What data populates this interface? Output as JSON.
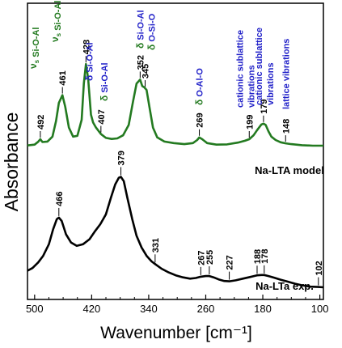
{
  "chart_data": {
    "type": "line",
    "xlabel": "Wavenumber [cm⁻¹]",
    "ylabel": "Absorbance",
    "xlim": [
      510,
      95
    ],
    "x_reversed": true,
    "x_ticks": [
      500,
      420,
      340,
      260,
      180,
      100
    ],
    "y_ticks_shown": false,
    "colors": {
      "model": "#237a20",
      "exp": "#000000",
      "vib_text": "#1f1fc8",
      "peak_text": "#000000"
    },
    "series": [
      {
        "name": "Na-LTA model",
        "color": "#237a20",
        "points": [
          [
            510,
            0.1
          ],
          [
            500,
            0.4
          ],
          [
            495,
            1.5
          ],
          [
            492,
            2.5
          ],
          [
            489,
            1.4
          ],
          [
            482,
            1.6
          ],
          [
            475,
            3.5
          ],
          [
            470,
            9.5
          ],
          [
            466,
            16.5
          ],
          [
            461,
            19.5
          ],
          [
            457,
            15
          ],
          [
            452,
            7
          ],
          [
            446,
            3.5
          ],
          [
            440,
            3.8
          ],
          [
            434,
            10
          ],
          [
            431,
            24
          ],
          [
            428,
            31.5
          ],
          [
            425,
            26
          ],
          [
            421,
            12
          ],
          [
            418,
            9
          ],
          [
            414,
            7
          ],
          [
            407,
            4.5
          ],
          [
            400,
            3
          ],
          [
            392,
            2.6
          ],
          [
            384,
            2.8
          ],
          [
            376,
            4
          ],
          [
            368,
            8
          ],
          [
            362,
            17
          ],
          [
            357,
            24
          ],
          [
            352,
            25.5
          ],
          [
            349,
            23
          ],
          [
            346,
            22.5
          ],
          [
            343,
            21.5
          ],
          [
            339,
            15
          ],
          [
            334,
            7
          ],
          [
            328,
            3.2
          ],
          [
            318,
            1.6
          ],
          [
            305,
            1
          ],
          [
            290,
            0.6
          ],
          [
            278,
            1
          ],
          [
            272,
            2.2
          ],
          [
            269,
            3.2
          ],
          [
            265,
            2.5
          ],
          [
            258,
            1
          ],
          [
            245,
            0.4
          ],
          [
            230,
            0.5
          ],
          [
            215,
            1.2
          ],
          [
            205,
            1.9
          ],
          [
            199,
            2.5
          ],
          [
            193,
            4
          ],
          [
            188,
            6
          ],
          [
            182,
            8.2
          ],
          [
            179,
            8.5
          ],
          [
            176,
            8
          ],
          [
            172,
            5.5
          ],
          [
            168,
            3.5
          ],
          [
            162,
            2.2
          ],
          [
            155,
            1.3
          ],
          [
            148,
            0.9
          ],
          [
            140,
            0.6
          ],
          [
            125,
            0.2
          ],
          [
            110,
            0
          ],
          [
            95,
            0
          ]
        ]
      },
      {
        "name": "Na-LTa exp.",
        "color": "#000000",
        "points": [
          [
            510,
            5
          ],
          [
            503,
            5.8
          ],
          [
            495,
            7.5
          ],
          [
            488,
            9.5
          ],
          [
            480,
            13
          ],
          [
            474,
            17.5
          ],
          [
            469,
            20.5
          ],
          [
            466,
            21
          ],
          [
            462,
            20
          ],
          [
            456,
            16
          ],
          [
            449,
            13.5
          ],
          [
            441,
            12.5
          ],
          [
            432,
            13
          ],
          [
            423,
            14.5
          ],
          [
            415,
            17
          ],
          [
            408,
            19
          ],
          [
            400,
            22
          ],
          [
            393,
            27
          ],
          [
            387,
            31
          ],
          [
            382,
            33
          ],
          [
            379,
            33.3
          ],
          [
            375,
            32
          ],
          [
            370,
            27
          ],
          [
            363,
            20.5
          ],
          [
            357,
            15.5
          ],
          [
            350,
            12
          ],
          [
            343,
            9.5
          ],
          [
            336,
            7.8
          ],
          [
            331,
            7
          ],
          [
            322,
            5.6
          ],
          [
            312,
            4.5
          ],
          [
            302,
            3.6
          ],
          [
            292,
            3
          ],
          [
            282,
            2.6
          ],
          [
            274,
            2.8
          ],
          [
            267,
            3.2
          ],
          [
            260,
            3.4
          ],
          [
            255,
            3.4
          ],
          [
            249,
            3
          ],
          [
            242,
            2.4
          ],
          [
            234,
            1.9
          ],
          [
            227,
            1.8
          ],
          [
            218,
            2.1
          ],
          [
            208,
            2.6
          ],
          [
            198,
            3.1
          ],
          [
            190,
            3.5
          ],
          [
            188,
            3.6
          ],
          [
            182,
            3.7
          ],
          [
            178,
            3.7
          ],
          [
            172,
            3.4
          ],
          [
            164,
            2.9
          ],
          [
            155,
            2.3
          ],
          [
            145,
            1.7
          ],
          [
            135,
            1.1
          ],
          [
            125,
            0.6
          ],
          [
            114,
            0.2
          ],
          [
            102,
            0.1
          ],
          [
            95,
            0
          ]
        ]
      }
    ],
    "peak_labels": [
      {
        "x": 492,
        "text": "492",
        "series": 0
      },
      {
        "x": 461,
        "text": "461",
        "series": 0
      },
      {
        "x": 428,
        "text": "428",
        "series": 0
      },
      {
        "x": 407,
        "text": "407",
        "series": 0
      },
      {
        "x": 352,
        "text": "352",
        "series": 0
      },
      {
        "x": 345,
        "text": "345",
        "series": 0
      },
      {
        "x": 269,
        "text": "269",
        "series": 0
      },
      {
        "x": 199,
        "text": "199",
        "series": 0
      },
      {
        "x": 179,
        "text": "179",
        "series": 0
      },
      {
        "x": 148,
        "text": "148",
        "series": 0
      },
      {
        "x": 466,
        "text": "466",
        "series": 1
      },
      {
        "x": 379,
        "text": "379",
        "series": 1
      },
      {
        "x": 331,
        "text": "331",
        "series": 1
      },
      {
        "x": 267,
        "text": "267",
        "series": 1
      },
      {
        "x": 255,
        "text": "255",
        "series": 1
      },
      {
        "x": 227,
        "text": "227",
        "series": 1
      },
      {
        "x": 188,
        "text": "188",
        "series": 1
      },
      {
        "x": 178,
        "text": "178",
        "series": 1
      },
      {
        "x": 102,
        "text": "102",
        "series": 1
      }
    ],
    "vibration_labels": [
      {
        "x": 492,
        "prefix": "ν",
        "sub": "s",
        "text": "Si-O-Al",
        "color_prefix": "#237a20",
        "color_text": "#237a20"
      },
      {
        "x": 461,
        "prefix": "ν",
        "sub": "s",
        "text": "Si-O-Al",
        "color_prefix": "#237a20",
        "color_text": "#237a20"
      },
      {
        "x": 428,
        "prefix": "δ",
        "sub": "",
        "text": "Si-O-Al",
        "color_prefix": "#1f1fc8",
        "color_text": "#1f1fc8"
      },
      {
        "x": 407,
        "prefix": "δ",
        "sub": "",
        "text": "Si-O-Al",
        "color_prefix": "#237a20",
        "color_text": "#1f1fc8"
      },
      {
        "x": 352,
        "prefix": "δ",
        "sub": "",
        "text": "Si-O-Al",
        "color_prefix": "#237a20",
        "color_text": "#1f1fc8"
      },
      {
        "x": 345,
        "prefix": "δ",
        "sub": "",
        "text": "O-Si-O",
        "color_prefix": "#237a20",
        "color_text": "#1f1fc8"
      },
      {
        "x": 269,
        "prefix": "δ",
        "sub": "",
        "text": "O-Al-O",
        "color_prefix": "#237a20",
        "color_text": "#1f1fc8"
      },
      {
        "x": 199,
        "prefix": "",
        "sub": "",
        "text": "cationic sublattice",
        "color_prefix": "#1f1fc8",
        "color_text": "#1f1fc8"
      },
      {
        "x": 199,
        "prefix": "",
        "sub": "",
        "text": "vibrations",
        "color_prefix": "#1f1fc8",
        "color_text": "#1f1fc8"
      },
      {
        "x": 179,
        "prefix": "",
        "sub": "",
        "text": "cationic sublattice",
        "color_prefix": "#1f1fc8",
        "color_text": "#1f1fc8"
      },
      {
        "x": 179,
        "prefix": "",
        "sub": "",
        "text": "vibrations",
        "color_prefix": "#1f1fc8",
        "color_text": "#1f1fc8"
      },
      {
        "x": 148,
        "prefix": "",
        "sub": "",
        "text": "lattice vibrations",
        "color_prefix": "#1f1fc8",
        "color_text": "#1f1fc8"
      }
    ],
    "series_labels": [
      "Na-LTA model",
      "Na-LTa exp."
    ]
  }
}
